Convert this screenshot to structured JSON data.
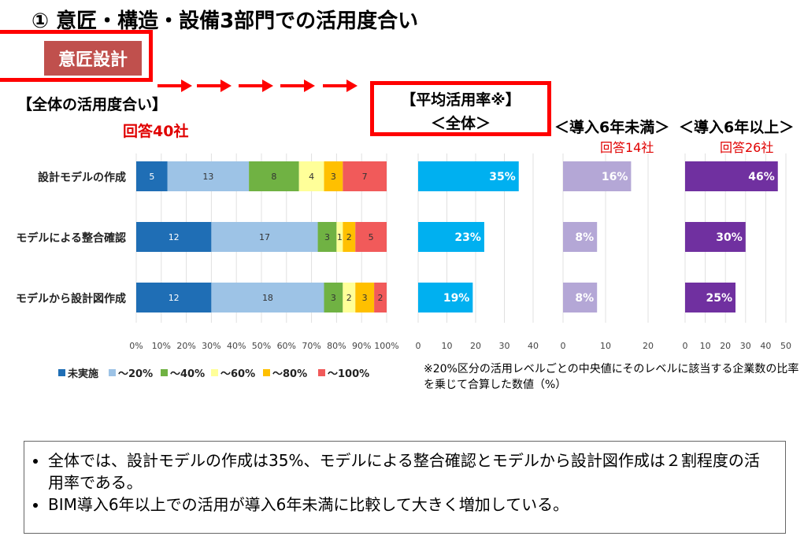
{
  "title": "① 意匠・構造・設備3部門での活用度合い",
  "department": "意匠設計",
  "section_label": "【全体の活用度合い】",
  "responses_all": "回答40社",
  "average_panel": {
    "title": "【平均活用率※】",
    "subtitle": "＜全体＞"
  },
  "groups": [
    {
      "title": "＜導入6年未満＞",
      "count": "回答14社"
    },
    {
      "title": "＜導入6年以上＞",
      "count": "回答26社"
    }
  ],
  "footnote": "※20%区分の活用レベルごとの中央値にそのレベルに該当する企業数の比率を乗じて合算した数値（%）",
  "summary": [
    "全体では、設計モデルの作成は35%、モデルによる整合確認とモデルから設計図作成は２割程度の活用率である。",
    "BIM導入6年以上での活用が導入6年未満に比較して大きく増加している。"
  ],
  "colors": {
    "accent_red": "#ff0000",
    "dept_fill": "#c0504d",
    "all_bar": "#00b0f0",
    "under6_bar": "#b4a7d6",
    "over6_bar": "#7030a0"
  },
  "chart_data": [
    {
      "type": "bar",
      "stacked": true,
      "orientation": "horizontal",
      "categories": [
        "設計モデルの作成",
        "モデルによる整合確認",
        "モデルから設計図作成"
      ],
      "series": [
        {
          "name": "未実施",
          "color": "#1f6eb5",
          "values": [
            5,
            12,
            12
          ]
        },
        {
          "name": "～20%",
          "color": "#9dc3e6",
          "values": [
            13,
            17,
            18
          ]
        },
        {
          "name": "～40%",
          "color": "#70b243",
          "values": [
            8,
            3,
            3
          ]
        },
        {
          "name": "～60%",
          "color": "#ffff99",
          "values": [
            4,
            1,
            2
          ]
        },
        {
          "name": "～80%",
          "color": "#ffc000",
          "values": [
            3,
            2,
            3
          ]
        },
        {
          "name": "～100%",
          "color": "#f15a5a",
          "values": [
            7,
            5,
            2
          ]
        }
      ],
      "xlim": [
        0,
        100
      ],
      "x_ticks": [
        "0%",
        "10%",
        "20%",
        "30%",
        "40%",
        "50%",
        "60%",
        "70%",
        "80%",
        "90%",
        "100%"
      ],
      "legend": "bottom"
    },
    {
      "type": "bar",
      "orientation": "horizontal",
      "categories": [
        "設計モデルの作成",
        "モデルによる整合確認",
        "モデルから設計図作成"
      ],
      "values": [
        35,
        23,
        19
      ],
      "labels": [
        "35%",
        "23%",
        "19%"
      ],
      "xlim": [
        0,
        40
      ],
      "x_ticks": [
        "0",
        "10",
        "20",
        "30",
        "40"
      ]
    },
    {
      "type": "bar",
      "orientation": "horizontal",
      "categories": [
        "設計モデルの作成",
        "モデルによる整合確認",
        "モデルから設計図作成"
      ],
      "values": [
        16,
        8,
        8
      ],
      "labels": [
        "16%",
        "8%",
        "8%"
      ],
      "xlim": [
        0,
        20
      ],
      "x_ticks": [
        "0",
        "10",
        "20"
      ]
    },
    {
      "type": "bar",
      "orientation": "horizontal",
      "categories": [
        "設計モデルの作成",
        "モデルによる整合確認",
        "モデルから設計図作成"
      ],
      "values": [
        46,
        30,
        25
      ],
      "labels": [
        "46%",
        "30%",
        "25%"
      ],
      "xlim": [
        0,
        50
      ],
      "x_ticks": [
        "0",
        "10",
        "20",
        "30",
        "40",
        "50"
      ]
    }
  ]
}
